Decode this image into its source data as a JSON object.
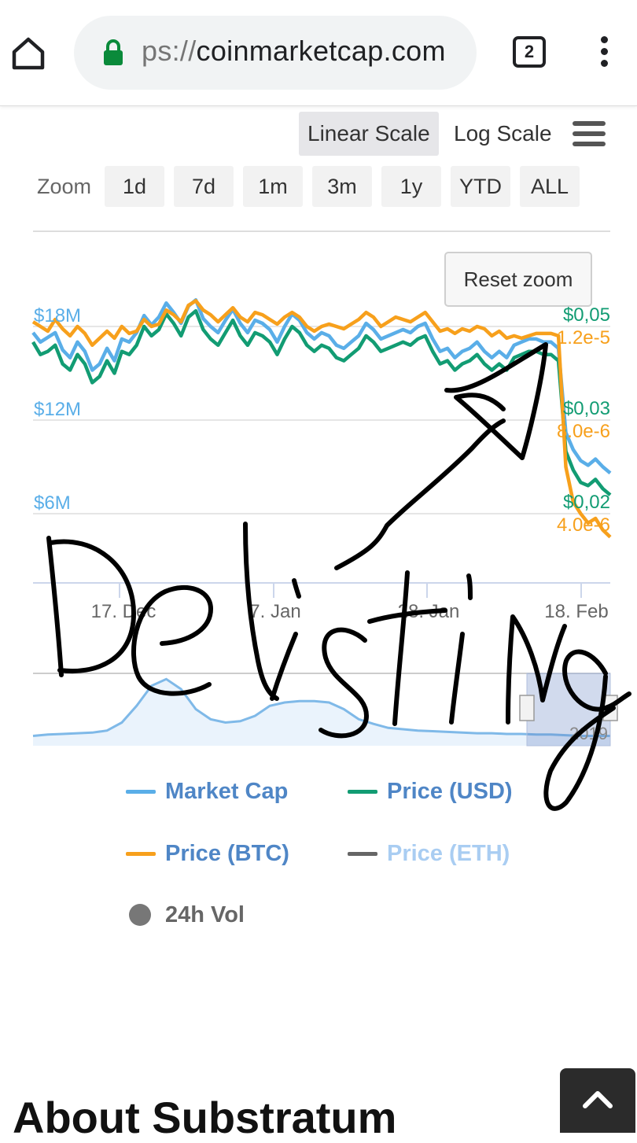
{
  "browser": {
    "url_scheme": "ps://",
    "url_host": "coinmarketcap.com",
    "tab_count": "2",
    "icons": [
      "home-icon",
      "lock-icon",
      "tabs-icon",
      "more-vert-icon"
    ]
  },
  "chart_controls": {
    "linear_scale": "Linear Scale",
    "log_scale": "Log Scale",
    "menu_icon": "hamburger-icon",
    "zoom_label": "Zoom",
    "zoom_options": [
      "1d",
      "7d",
      "1m",
      "3m",
      "1y",
      "YTD",
      "ALL"
    ],
    "selected_scale": "Linear Scale",
    "reset_zoom": "Reset zoom"
  },
  "chart_data": {
    "type": "line",
    "title": "",
    "y_left_ticks": [
      "$18M",
      "$12M",
      "$6M"
    ],
    "y_usd_ticks": [
      "$0,05",
      "$0,03",
      "$0,02"
    ],
    "y_btc_ticks": [
      "1.2e-5",
      "8.0e-6",
      "4.0e-6"
    ],
    "x_ticks": [
      "17. Dec",
      "7. Jan",
      "28. Jan",
      "18. Feb"
    ],
    "navigator_label": "2019",
    "colors": {
      "market_cap": "#5aaee8",
      "price_usd": "#129c73",
      "price_btc": "#f7a01c",
      "price_eth": "#666666",
      "volume": "#777777",
      "grid": "#e6e6e6"
    },
    "series": [
      {
        "name": "Price (BTC)",
        "values": [
          1.22e-05,
          1.2e-05,
          1.18e-05,
          1.23e-05,
          1.19e-05,
          1.16e-05,
          1.2e-05,
          1.17e-05,
          1.12e-05,
          1.15e-05,
          1.18e-05,
          1.15e-05,
          1.2e-05,
          1.17e-05,
          1.18e-05,
          1.23e-05,
          1.2e-05,
          1.21e-05,
          1.27e-05,
          1.25e-05,
          1.22e-05,
          1.29e-05,
          1.31e-05,
          1.27e-05,
          1.25e-05,
          1.22e-05,
          1.25e-05,
          1.28e-05,
          1.24e-05,
          1.22e-05,
          1.26e-05,
          1.25e-05,
          1.23e-05,
          1.21e-05,
          1.24e-05,
          1.26e-05,
          1.24e-05,
          1.2e-05,
          1.18e-05,
          1.2e-05,
          1.21e-05,
          1.2e-05,
          1.19e-05,
          1.21e-05,
          1.23e-05,
          1.26e-05,
          1.24e-05,
          1.2e-05,
          1.22e-05,
          1.24e-05,
          1.23e-05,
          1.22e-05,
          1.24e-05,
          1.26e-05,
          1.22e-05,
          1.18e-05,
          1.19e-05,
          1.17e-05,
          1.19e-05,
          1.18e-05,
          1.2e-05,
          1.19e-05,
          1.16e-05,
          1.18e-05,
          1.15e-05,
          1.16e-05,
          1.15e-05,
          1.16e-05,
          1.17e-05,
          1.17e-05,
          1.17e-05,
          1.16e-05,
          6e-06,
          4.5e-06,
          4e-06,
          3.6e-06,
          3.8e-06,
          3.3e-06,
          3e-06
        ]
      },
      {
        "name": "Price (USD)",
        "values": [
          0.0475,
          0.0455,
          0.046,
          0.047,
          0.044,
          0.043,
          0.0455,
          0.044,
          0.041,
          0.042,
          0.0445,
          0.0425,
          0.046,
          0.0455,
          0.047,
          0.05,
          0.0485,
          0.0495,
          0.052,
          0.0505,
          0.0485,
          0.0515,
          0.0525,
          0.0495,
          0.048,
          0.047,
          0.049,
          0.051,
          0.0485,
          0.047,
          0.049,
          0.0485,
          0.0475,
          0.0455,
          0.048,
          0.05,
          0.049,
          0.047,
          0.046,
          0.047,
          0.0465,
          0.045,
          0.0445,
          0.0455,
          0.0465,
          0.0485,
          0.0475,
          0.046,
          0.0465,
          0.047,
          0.0475,
          0.047,
          0.048,
          0.0485,
          0.046,
          0.044,
          0.0445,
          0.043,
          0.044,
          0.0445,
          0.0455,
          0.044,
          0.043,
          0.044,
          0.043,
          0.045,
          0.0455,
          0.046,
          0.046,
          0.0455,
          0.0455,
          0.0445,
          0.03,
          0.027,
          0.025,
          0.0245,
          0.0255,
          0.024,
          0.023
        ]
      },
      {
        "name": "Market Cap",
        "values": [
          17.6,
          17.0,
          17.3,
          17.6,
          16.5,
          16.0,
          17.0,
          16.4,
          15.2,
          15.6,
          16.6,
          15.8,
          17.2,
          17.0,
          17.6,
          18.7,
          18.1,
          18.6,
          19.5,
          18.9,
          18.2,
          19.3,
          19.7,
          18.5,
          18.0,
          17.6,
          18.4,
          19.1,
          18.2,
          17.6,
          18.4,
          18.2,
          17.8,
          17.0,
          18.0,
          18.8,
          18.4,
          17.6,
          17.2,
          17.6,
          17.4,
          16.8,
          16.6,
          17.0,
          17.4,
          18.2,
          17.8,
          17.2,
          17.4,
          17.6,
          17.8,
          17.6,
          18.0,
          18.2,
          17.2,
          16.4,
          16.6,
          16.0,
          16.4,
          16.6,
          17.0,
          16.4,
          16.0,
          16.4,
          16.0,
          16.8,
          17.0,
          17.2,
          17.2,
          17.0,
          17.0,
          16.6,
          11.2,
          10.1,
          9.4,
          9.1,
          9.5,
          9.0,
          8.6
        ]
      },
      {
        "name": "24h Vol",
        "values": [
          0.1,
          0.12,
          0.13,
          0.14,
          0.15,
          0.18,
          0.3,
          0.55,
          0.85,
          0.95,
          0.8,
          0.5,
          0.35,
          0.3,
          0.32,
          0.4,
          0.55,
          0.6,
          0.62,
          0.62,
          0.6,
          0.5,
          0.35,
          0.28,
          0.22,
          0.2,
          0.18,
          0.17,
          0.16,
          0.15,
          0.14,
          0.14,
          0.13,
          0.13,
          0.12,
          0.12,
          0.11,
          0.1,
          0.1,
          0.1
        ]
      }
    ]
  },
  "legend": [
    {
      "label": "Market Cap",
      "color": "#5aaee8",
      "marker": "line",
      "hidden": false
    },
    {
      "label": "Price (USD)",
      "color": "#129c73",
      "marker": "line",
      "hidden": false
    },
    {
      "label": "Price (BTC)",
      "color": "#f7a01c",
      "marker": "line",
      "hidden": false
    },
    {
      "label": "Price (ETH)",
      "color": "#666666",
      "marker": "line",
      "hidden": true
    },
    {
      "label": "24h Vol",
      "color": "#777777",
      "marker": "dot",
      "hidden": false
    }
  ],
  "about": {
    "title": "About Substratum"
  },
  "scroll_top_icon": "chevron-up-icon",
  "annotation": {
    "text": "Delisting",
    "icon": "arrow-annotation-icon"
  }
}
